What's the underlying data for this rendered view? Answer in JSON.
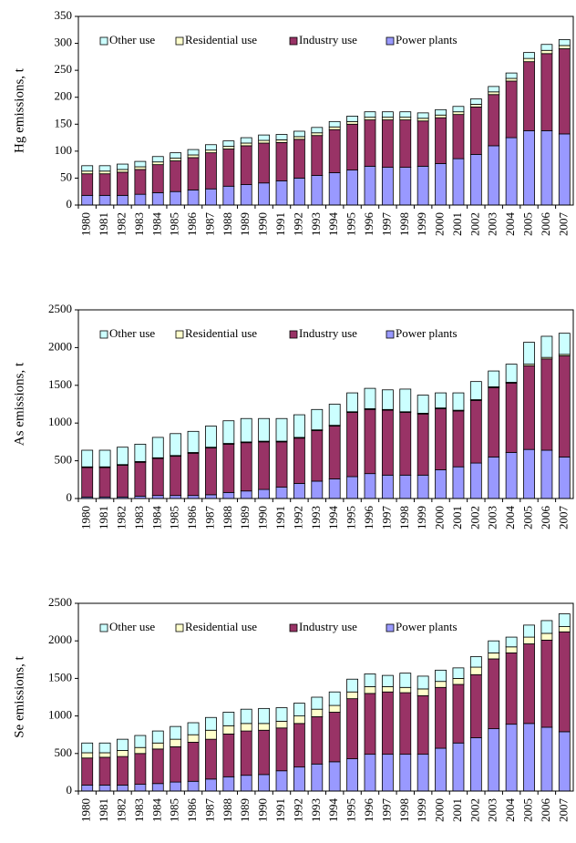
{
  "chart_data": [
    {
      "type": "stacked-bar",
      "y_label": "Hg emissions, t",
      "ylim": [
        0,
        350
      ],
      "yticks": [
        0,
        50,
        100,
        150,
        200,
        250,
        300,
        350
      ],
      "categories": [
        "1980",
        "1981",
        "1982",
        "1983",
        "1984",
        "1985",
        "1986",
        "1987",
        "1988",
        "1989",
        "1990",
        "1991",
        "1992",
        "1993",
        "1994",
        "1995",
        "1996",
        "1997",
        "1998",
        "1999",
        "2000",
        "2001",
        "2002",
        "2003",
        "2004",
        "2005",
        "2006",
        "2007"
      ],
      "series": [
        {
          "name": "Other use",
          "color": "#ccffff",
          "values": [
            10,
            10,
            10,
            10,
            10,
            10,
            10,
            10,
            10,
            10,
            10,
            10,
            10,
            10,
            10,
            10,
            10,
            10,
            10,
            10,
            10,
            10,
            10,
            10,
            10,
            11,
            11,
            11
          ]
        },
        {
          "name": "Residential use",
          "color": "#ffffcc",
          "values": [
            5,
            5,
            5,
            5,
            5,
            5,
            5,
            5,
            5,
            5,
            5,
            5,
            5,
            5,
            5,
            5,
            5,
            5,
            5,
            5,
            5,
            5,
            5,
            5,
            5,
            6,
            6,
            6
          ]
        },
        {
          "name": "Industry use",
          "color": "#993366",
          "values": [
            40,
            40,
            43,
            46,
            52,
            57,
            60,
            67,
            69,
            72,
            74,
            71,
            72,
            74,
            80,
            85,
            86,
            88,
            88,
            84,
            85,
            82,
            88,
            95,
            105,
            128,
            143,
            158
          ]
        },
        {
          "name": "Power plants",
          "color": "#9999ff",
          "values": [
            18,
            18,
            18,
            20,
            23,
            25,
            28,
            30,
            35,
            38,
            41,
            45,
            50,
            55,
            60,
            65,
            72,
            70,
            70,
            72,
            77,
            86,
            94,
            110,
            125,
            138,
            138,
            132
          ]
        }
      ]
    },
    {
      "type": "stacked-bar",
      "y_label": "As emissions, t",
      "ylim": [
        0,
        2500
      ],
      "yticks": [
        0,
        500,
        1000,
        1500,
        2000,
        2500
      ],
      "categories": [
        "1980",
        "1981",
        "1982",
        "1983",
        "1984",
        "1985",
        "1986",
        "1987",
        "1988",
        "1989",
        "1990",
        "1991",
        "1992",
        "1993",
        "1994",
        "1995",
        "1996",
        "1997",
        "1998",
        "1999",
        "2000",
        "2001",
        "2002",
        "2003",
        "2004",
        "2005",
        "2006",
        "2007"
      ],
      "series": [
        {
          "name": "Other use",
          "color": "#ccffff",
          "values": [
            220,
            220,
            230,
            230,
            270,
            290,
            280,
            280,
            300,
            310,
            300,
            300,
            300,
            270,
            280,
            250,
            270,
            260,
            300,
            240,
            200,
            230,
            240,
            210,
            240,
            290,
            280,
            280
          ]
        },
        {
          "name": "Residential use",
          "color": "#ffffcc",
          "values": [
            10,
            10,
            10,
            10,
            10,
            10,
            10,
            10,
            10,
            10,
            10,
            10,
            10,
            10,
            10,
            10,
            10,
            10,
            10,
            10,
            10,
            10,
            10,
            10,
            10,
            20,
            20,
            20
          ]
        },
        {
          "name": "Industry use",
          "color": "#993366",
          "values": [
            390,
            390,
            420,
            450,
            490,
            520,
            560,
            620,
            640,
            640,
            630,
            600,
            600,
            670,
            700,
            850,
            850,
            860,
            830,
            810,
            810,
            740,
            830,
            920,
            920,
            1110,
            1210,
            1340
          ]
        },
        {
          "name": "Power plants",
          "color": "#9999ff",
          "values": [
            20,
            20,
            20,
            30,
            40,
            40,
            40,
            50,
            80,
            100,
            120,
            150,
            200,
            230,
            260,
            290,
            330,
            310,
            310,
            310,
            380,
            420,
            470,
            550,
            610,
            650,
            640,
            550
          ]
        }
      ]
    },
    {
      "type": "stacked-bar",
      "y_label": "Se emissions, t",
      "ylim": [
        0,
        2500
      ],
      "yticks": [
        0,
        500,
        1000,
        1500,
        2000,
        2500
      ],
      "categories": [
        "1980",
        "1981",
        "1982",
        "1983",
        "1984",
        "1985",
        "1986",
        "1987",
        "1988",
        "1989",
        "1990",
        "1991",
        "1992",
        "1993",
        "1994",
        "1995",
        "1996",
        "1997",
        "1998",
        "1999",
        "2000",
        "2001",
        "2002",
        "2003",
        "2004",
        "2005",
        "2006",
        "2007"
      ],
      "series": [
        {
          "name": "Other use",
          "color": "#ccffff",
          "values": [
            130,
            130,
            150,
            160,
            160,
            170,
            160,
            170,
            180,
            190,
            200,
            180,
            170,
            160,
            180,
            170,
            170,
            150,
            190,
            170,
            150,
            140,
            140,
            160,
            130,
            160,
            170,
            170
          ]
        },
        {
          "name": "Residential use",
          "color": "#ffffcc",
          "values": [
            70,
            60,
            80,
            80,
            80,
            100,
            100,
            120,
            110,
            100,
            90,
            90,
            100,
            100,
            90,
            90,
            90,
            70,
            70,
            90,
            80,
            80,
            100,
            80,
            80,
            90,
            90,
            70
          ]
        },
        {
          "name": "Industry use",
          "color": "#993366",
          "values": [
            360,
            370,
            380,
            410,
            460,
            470,
            520,
            530,
            570,
            590,
            590,
            570,
            580,
            630,
            660,
            800,
            810,
            830,
            820,
            780,
            810,
            780,
            840,
            930,
            950,
            1060,
            1160,
            1330
          ]
        },
        {
          "name": "Power plants",
          "color": "#9999ff",
          "values": [
            80,
            80,
            80,
            90,
            100,
            120,
            130,
            160,
            190,
            210,
            220,
            270,
            320,
            360,
            390,
            430,
            490,
            490,
            490,
            490,
            570,
            640,
            710,
            830,
            890,
            900,
            850,
            790
          ]
        }
      ]
    }
  ]
}
